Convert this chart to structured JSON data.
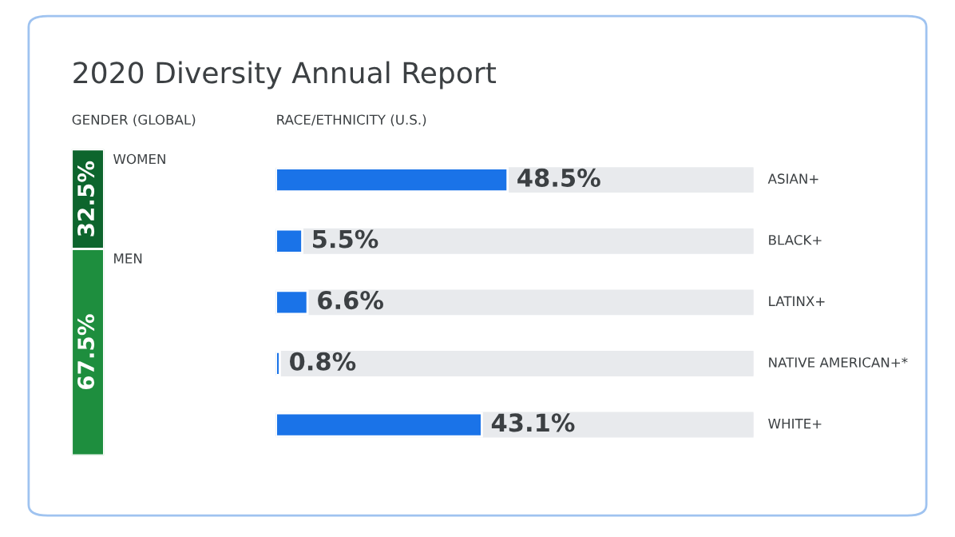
{
  "chart_data": [
    {
      "type": "bar",
      "title": "2020 Diversity Annual Report",
      "subtitle": "GENDER (GLOBAL)",
      "categories": [
        null
      ],
      "stacked": true,
      "ylim": [
        0,
        100
      ],
      "tick_labels": false,
      "legend": false,
      "grid": false,
      "series": [
        {
          "name": "MEN",
          "color": "#1e8e3e",
          "values": [
            67.5
          ],
          "value_labels": [
            "67.5%"
          ]
        },
        {
          "name": "WOMEN",
          "color": "#0d652d",
          "values": [
            32.5
          ],
          "value_labels": [
            "32.5%"
          ]
        }
      ]
    },
    {
      "type": "bar",
      "orientation": "horizontal",
      "title": "RACE/ETHNICITY (U.S.)",
      "categories": [
        "ASIAN+",
        "BLACK+",
        "LATINX+",
        "NATIVE AMERICAN+*",
        "WHITE+"
      ],
      "xlim": [
        0,
        100
      ],
      "tick_labels": false,
      "legend": false,
      "grid": false,
      "series": [
        {
          "color": "#1a73e8",
          "values": [
            48.5,
            5.5,
            6.6,
            0.8,
            43.1
          ],
          "value_labels": [
            "48.5%",
            "5.5%",
            "6.6%",
            "0.8%",
            "43.1%"
          ]
        }
      ]
    }
  ]
}
